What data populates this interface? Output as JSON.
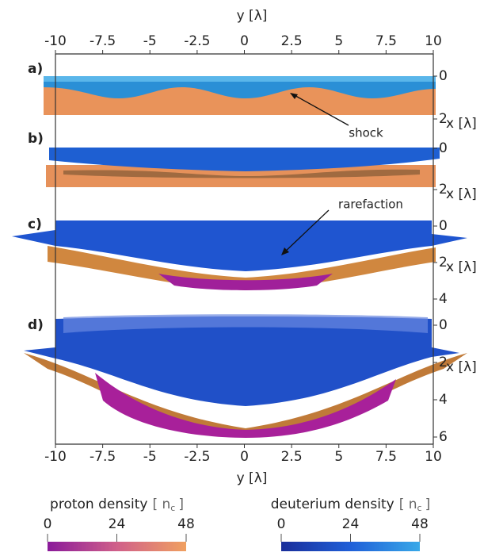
{
  "top_axis": {
    "label": "y [λ]",
    "lim": [
      -10,
      10
    ],
    "ticks": [
      -10,
      -7.5,
      -5,
      -2.5,
      0,
      2.5,
      5,
      7.5,
      10
    ]
  },
  "bottom_axis": {
    "label": "y [λ]",
    "lim": [
      -10,
      10
    ],
    "ticks": [
      -10,
      -7.5,
      -5,
      -2.5,
      0,
      2.5,
      5,
      7.5,
      10
    ]
  },
  "panels": [
    {
      "label": "a)",
      "axis_label": "x [λ]",
      "ticks": [
        0,
        2
      ]
    },
    {
      "label": "b)",
      "axis_label": "x [λ]",
      "ticks": [
        0,
        2
      ]
    },
    {
      "label": "c)",
      "axis_label": "x [λ]",
      "ticks": [
        0,
        2,
        4
      ]
    },
    {
      "label": "d)",
      "axis_label": "x [λ]",
      "ticks": [
        0,
        2,
        4,
        6
      ]
    }
  ],
  "annotations": [
    "shock",
    "rarefaction"
  ],
  "colorbars": [
    {
      "name": "proton density",
      "unit_open": "[ n",
      "unit_sub": "c",
      "unit_close": "]",
      "lim": [
        0,
        48
      ],
      "ticks": [
        0,
        24,
        48
      ]
    },
    {
      "name": "deuterium density",
      "unit_open": "[ n",
      "unit_sub": "c",
      "unit_close": "]",
      "lim": [
        0,
        48
      ],
      "ticks": [
        0,
        24,
        48
      ]
    }
  ]
}
